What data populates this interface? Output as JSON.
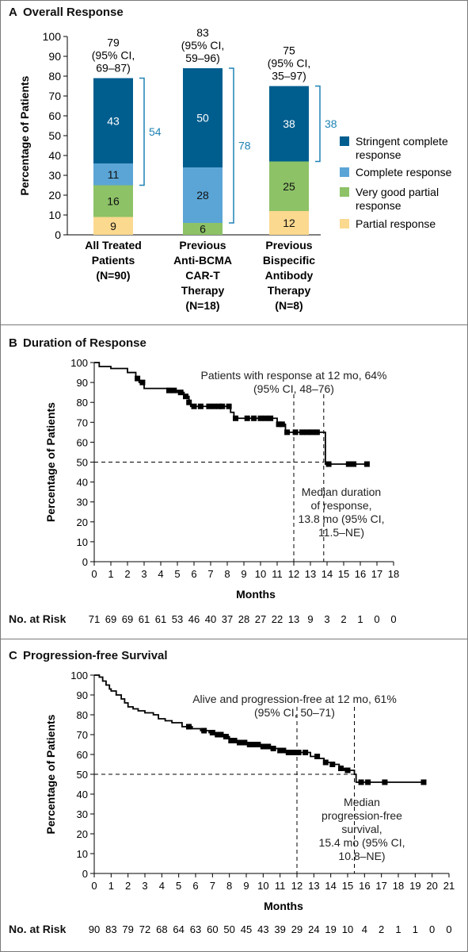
{
  "figure": {
    "panel_a": {
      "letter": "A",
      "title": "Overall Response"
    },
    "panel_b": {
      "letter": "B",
      "title": "Duration of Response",
      "risk_label": "No. at Risk"
    },
    "panel_c": {
      "letter": "C",
      "title": "Progression-free Survival",
      "risk_label": "No. at Risk"
    }
  },
  "chart_data": [
    {
      "type": "bar",
      "stacked": true,
      "title": "Overall Response",
      "ylabel": "Percentage of Patients",
      "ylim": [
        0,
        100
      ],
      "yticks": [
        0,
        10,
        20,
        30,
        40,
        50,
        60,
        70,
        80,
        90,
        100
      ],
      "categories": [
        [
          "All Treated",
          "Patients",
          "(N=90)"
        ],
        [
          "Previous",
          "Anti-BCMA",
          "CAR-T",
          "Therapy",
          "(N=18)"
        ],
        [
          "Previous",
          "Bispecific",
          "Antibody",
          "Therapy",
          "(N=8)"
        ]
      ],
      "series": [
        {
          "name": "Partial response",
          "color": "#FBD98F",
          "values": [
            9,
            0,
            12
          ]
        },
        {
          "name": "Very good partial response",
          "color": "#8DC267",
          "values": [
            16,
            6,
            25
          ]
        },
        {
          "name": "Complete response",
          "color": "#5BA5D6",
          "values": [
            11,
            28,
            0
          ]
        },
        {
          "name": "Stringent complete response",
          "color": "#005E8F",
          "values": [
            43,
            50,
            38
          ]
        }
      ],
      "legend_order": [
        {
          "lines": [
            "Stringent complete",
            "response"
          ],
          "series": 3
        },
        {
          "lines": [
            "Complete response"
          ],
          "series": 2
        },
        {
          "lines": [
            "Very good partial",
            "response"
          ],
          "series": 1
        },
        {
          "lines": [
            "Partial response"
          ],
          "series": 0
        }
      ],
      "segment_labels": [
        [
          "9",
          "16",
          "11",
          "43"
        ],
        [
          "",
          "6",
          "28",
          "50"
        ],
        [
          "12",
          "25",
          "",
          "38"
        ]
      ],
      "totals": [
        {
          "value": 79,
          "lines": [
            "79",
            "(95% CI,",
            "69–87)"
          ]
        },
        {
          "value": 83,
          "lines": [
            "83",
            "(95% CI,",
            "59–96)"
          ]
        },
        {
          "value": 75,
          "lines": [
            "75",
            "(95% CI,",
            "35–97)"
          ]
        }
      ],
      "brackets": [
        {
          "label": "54",
          "from": 25,
          "to": 79
        },
        {
          "label": "78",
          "from": 6,
          "to": 84
        },
        {
          "label": "38",
          "from": 37,
          "to": 75
        }
      ],
      "bracket_color": "#1E82B5",
      "legend_position": "right"
    },
    {
      "type": "line",
      "step": true,
      "title": "Duration of Response",
      "xlabel": "Months",
      "ylabel": "Percentage of Patients",
      "xlim": [
        0,
        18
      ],
      "ylim": [
        0,
        100
      ],
      "xticks": [
        0,
        1,
        2,
        3,
        4,
        5,
        6,
        7,
        8,
        9,
        10,
        11,
        12,
        13,
        14,
        15,
        16,
        17,
        18
      ],
      "yticks": [
        0,
        10,
        20,
        30,
        40,
        50,
        60,
        70,
        80,
        90,
        100
      ],
      "series": [
        {
          "name": "",
          "x": [
            0,
            0.3,
            1.0,
            2.0,
            2.5,
            2.7,
            3.0,
            4.5,
            5.0,
            5.4,
            5.7,
            5.8,
            6.5,
            8.2,
            8.4,
            11.0,
            11.5,
            13.9,
            16.4
          ],
          "y": [
            100,
            98,
            97,
            95,
            92,
            90,
            87,
            86,
            85,
            83,
            80,
            78,
            78,
            75,
            72,
            69,
            65,
            49,
            49
          ],
          "censor_x": [
            2.6,
            2.9,
            4.5,
            4.8,
            5.2,
            5.5,
            5.7,
            6.0,
            6.4,
            6.9,
            7.2,
            7.5,
            7.7,
            8.1,
            8.5,
            9.2,
            9.6,
            10.0,
            10.3,
            10.6,
            11.1,
            11.3,
            11.6,
            12.1,
            12.5,
            12.8,
            13.1,
            13.4,
            14.1,
            15.3,
            15.6,
            16.4
          ]
        }
      ],
      "reference_lines": [
        {
          "axis": "y",
          "value": 50
        },
        {
          "axis": "x",
          "value": 12
        },
        {
          "axis": "x",
          "value": 13.8
        }
      ],
      "annotations": [
        {
          "lines": [
            "Patients with response at 12 mo, 64%",
            "(95% CI, 48–76)"
          ]
        },
        {
          "lines": [
            "Median duration",
            "of response,",
            "13.8 mo (95% CI,",
            "11.5–NE)"
          ]
        }
      ],
      "at_risk_label": "No. at Risk",
      "at_risk": [
        71,
        69,
        69,
        61,
        61,
        53,
        46,
        40,
        37,
        28,
        27,
        22,
        13,
        9,
        3,
        2,
        1,
        0,
        0
      ]
    },
    {
      "type": "line",
      "step": true,
      "title": "Progression-free Survival",
      "xlabel": "Months",
      "ylabel": "Percentage of Patients",
      "xlim": [
        0,
        21
      ],
      "ylim": [
        0,
        100
      ],
      "xticks": [
        0,
        1,
        2,
        3,
        4,
        5,
        6,
        7,
        8,
        9,
        10,
        11,
        12,
        13,
        14,
        15,
        16,
        17,
        18,
        19,
        20,
        21
      ],
      "yticks": [
        0,
        10,
        20,
        30,
        40,
        50,
        60,
        70,
        80,
        90,
        100
      ],
      "series": [
        {
          "name": "",
          "x": [
            0,
            0.3,
            0.5,
            0.7,
            0.9,
            1.0,
            1.3,
            1.6,
            1.8,
            2.0,
            2.3,
            2.6,
            3.0,
            3.5,
            3.8,
            4.2,
            4.6,
            5.2,
            5.8,
            6.3,
            6.8,
            7.2,
            7.6,
            8.0,
            8.4,
            9.0,
            10.0,
            10.5,
            11.0,
            11.5,
            12.0,
            12.8,
            13.3,
            13.6,
            14.0,
            14.5,
            14.8,
            15.4,
            15.5,
            19.5
          ],
          "y": [
            100,
            99,
            97,
            95,
            93,
            92,
            90,
            88,
            86,
            84,
            83,
            82,
            81,
            80,
            78,
            77,
            76,
            74,
            73,
            72,
            71,
            70,
            69,
            67,
            66,
            65,
            64,
            63,
            62,
            61,
            61,
            59,
            58,
            56,
            55,
            53,
            52,
            50,
            46,
            46
          ],
          "censor_x": [
            5.6,
            6.5,
            7.0,
            7.3,
            7.5,
            7.8,
            8.1,
            8.3,
            8.6,
            8.9,
            9.2,
            9.4,
            9.7,
            10.0,
            10.3,
            10.6,
            11.0,
            11.2,
            11.5,
            11.8,
            12.1,
            12.5,
            13.2,
            13.7,
            14.1,
            14.6,
            15.0,
            15.8,
            16.2,
            17.2,
            19.5
          ]
        }
      ],
      "reference_lines": [
        {
          "axis": "y",
          "value": 50
        },
        {
          "axis": "x",
          "value": 12
        },
        {
          "axis": "x",
          "value": 15.4
        }
      ],
      "annotations": [
        {
          "lines": [
            "Alive and progression-free at 12 mo, 61%",
            "(95% CI, 50–71)"
          ]
        },
        {
          "lines": [
            "Median",
            "progression-free",
            "survival,",
            "15.4 mo (95% CI,",
            "10.8–NE)"
          ]
        }
      ],
      "at_risk_label": "No. at Risk",
      "at_risk": [
        90,
        83,
        79,
        72,
        68,
        64,
        63,
        60,
        50,
        45,
        43,
        39,
        29,
        24,
        19,
        10,
        4,
        2,
        1,
        1,
        0,
        0
      ]
    }
  ]
}
